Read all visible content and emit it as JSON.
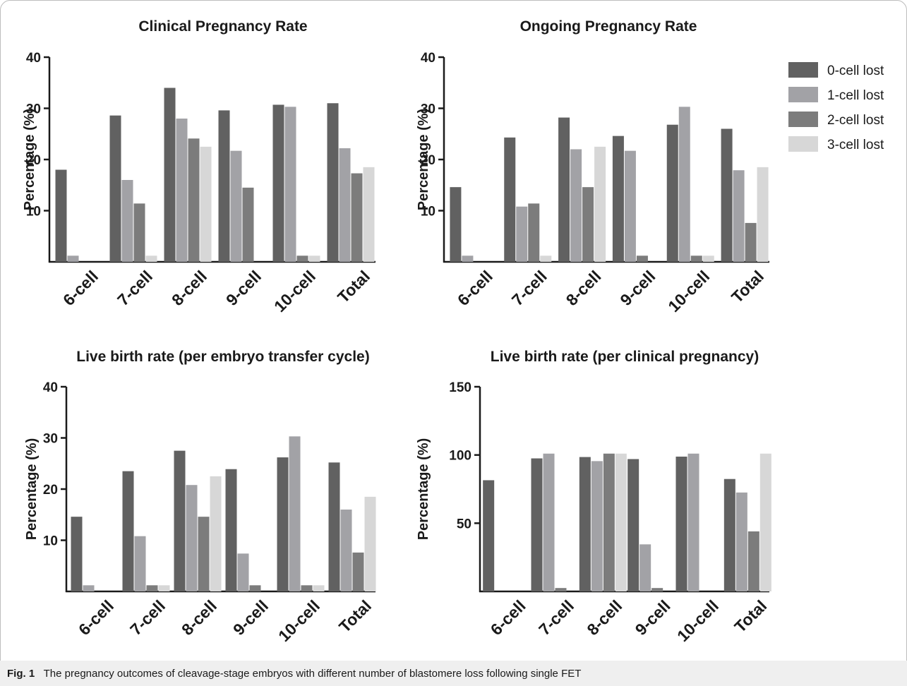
{
  "legend": [
    {
      "label": "0-cell lost",
      "color": "#616161"
    },
    {
      "label": "1-cell lost",
      "color": "#a2a2a6"
    },
    {
      "label": "2-cell lost",
      "color": "#7c7c7c"
    },
    {
      "label": "3-cell lost",
      "color": "#d7d7d7"
    }
  ],
  "caption": {
    "prefix": "Fig. 1",
    "text": "The pregnancy outcomes of cleavage-stage embryos with different number of blastomere loss following single FET"
  },
  "chart_data": [
    {
      "type": "bar",
      "title": "Clinical Pregnancy Rate",
      "ylabel": "Percentage (%)",
      "ylim": [
        0,
        40
      ],
      "yticks": [
        10,
        20,
        30,
        40
      ],
      "categories": [
        "6-cell",
        "7-cell",
        "8-cell",
        "9-cell",
        "10-cell",
        "Total"
      ],
      "series": [
        {
          "name": "0-cell lost",
          "values": [
            18.0,
            28.6,
            34.0,
            29.6,
            30.7,
            31.0
          ]
        },
        {
          "name": "1-cell lost",
          "values": [
            1.2,
            16.0,
            28.0,
            21.7,
            30.3,
            22.2
          ]
        },
        {
          "name": "2-cell lost",
          "values": [
            0,
            11.4,
            24.1,
            14.5,
            1.2,
            17.3
          ]
        },
        {
          "name": "3-cell lost",
          "values": [
            0,
            1.2,
            22.5,
            0,
            1.2,
            18.5
          ]
        }
      ]
    },
    {
      "type": "bar",
      "title": "Ongoing Pregnancy Rate",
      "ylabel": "Percentage (%)",
      "ylim": [
        0,
        40
      ],
      "yticks": [
        10,
        20,
        30,
        40
      ],
      "categories": [
        "6-cell",
        "7-cell",
        "8-cell",
        "9-cell",
        "10-cell",
        "Total"
      ],
      "series": [
        {
          "name": "0-cell lost",
          "values": [
            14.6,
            24.3,
            28.2,
            24.6,
            26.8,
            26.0
          ]
        },
        {
          "name": "1-cell lost",
          "values": [
            1.2,
            10.8,
            22.0,
            21.7,
            30.3,
            17.9
          ]
        },
        {
          "name": "2-cell lost",
          "values": [
            0,
            11.4,
            14.6,
            1.2,
            1.2,
            7.6
          ]
        },
        {
          "name": "3-cell lost",
          "values": [
            0,
            1.2,
            22.5,
            0,
            1.2,
            18.5
          ]
        }
      ]
    },
    {
      "type": "bar",
      "title": "Live birth rate (per embryo transfer cycle)",
      "ylabel": "Percentage (%)",
      "ylim": [
        0,
        40
      ],
      "yticks": [
        10,
        20,
        30,
        40
      ],
      "categories": [
        "6-cell",
        "7-cell",
        "8-cell",
        "9-cell",
        "10-cell",
        "Total"
      ],
      "series": [
        {
          "name": "0-cell lost",
          "values": [
            14.6,
            23.5,
            27.5,
            23.9,
            26.2,
            25.2
          ]
        },
        {
          "name": "1-cell lost",
          "values": [
            1.2,
            10.8,
            20.8,
            7.4,
            30.3,
            16.0
          ]
        },
        {
          "name": "2-cell lost",
          "values": [
            0,
            1.2,
            14.6,
            1.2,
            1.2,
            7.6
          ]
        },
        {
          "name": "3-cell lost",
          "values": [
            0,
            1.2,
            22.5,
            0,
            1.2,
            18.5
          ]
        }
      ]
    },
    {
      "type": "bar",
      "title": "Live birth rate (per clinical pregnancy)",
      "ylabel": "Percentage (%)",
      "ylim": [
        0,
        150
      ],
      "yticks": [
        50,
        100,
        150
      ],
      "categories": [
        "6-cell",
        "7-cell",
        "8-cell",
        "9-cell",
        "10-cell",
        "Total"
      ],
      "series": [
        {
          "name": "0-cell lost",
          "values": [
            81.5,
            97.5,
            98.5,
            97.0,
            98.8,
            82.4
          ]
        },
        {
          "name": "1-cell lost",
          "values": [
            0,
            101.0,
            95.5,
            34.5,
            101.0,
            72.5
          ]
        },
        {
          "name": "2-cell lost",
          "values": [
            0,
            2.5,
            101.0,
            2.5,
            0,
            44.0
          ]
        },
        {
          "name": "3-cell lost",
          "values": [
            0,
            0,
            101.0,
            0,
            0,
            101.0
          ]
        }
      ]
    }
  ]
}
